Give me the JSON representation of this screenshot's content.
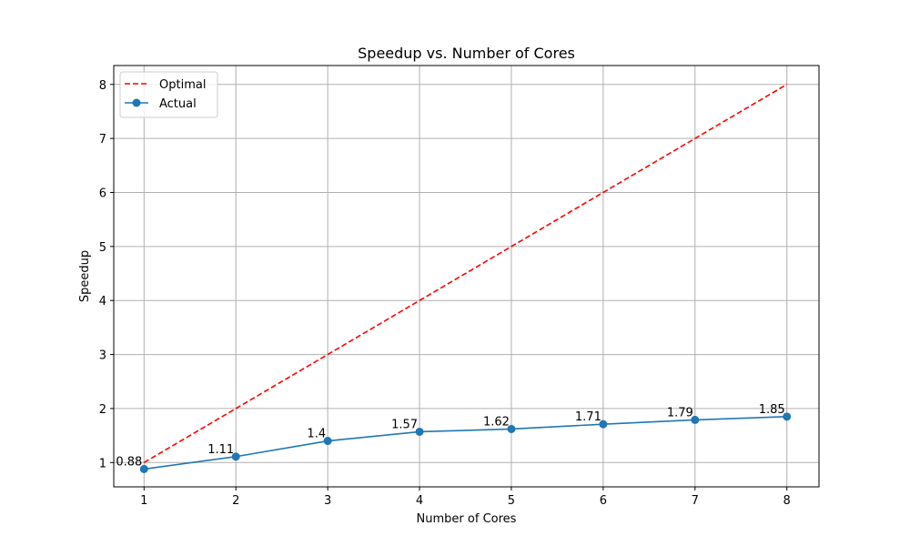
{
  "chart_data": {
    "type": "line",
    "title": "Speedup vs. Number of Cores",
    "xlabel": "Number of Cores",
    "ylabel": "Speedup",
    "x": [
      1,
      2,
      3,
      4,
      5,
      6,
      7,
      8
    ],
    "xlim": [
      0.67,
      8.35
    ],
    "ylim": [
      0.55,
      8.35
    ],
    "xticks": [
      "1",
      "2",
      "3",
      "4",
      "5",
      "6",
      "7",
      "8"
    ],
    "yticks": [
      "1",
      "2",
      "3",
      "4",
      "5",
      "6",
      "7",
      "8"
    ],
    "grid": true,
    "legend_position": "top-left",
    "series": [
      {
        "name": "Optimal",
        "values": [
          1,
          2,
          3,
          4,
          5,
          6,
          7,
          8
        ],
        "color": "#ff0000",
        "style": "dashed",
        "markers": false
      },
      {
        "name": "Actual",
        "values": [
          0.88,
          1.11,
          1.4,
          1.57,
          1.62,
          1.71,
          1.79,
          1.85
        ],
        "color": "#1f77b4",
        "style": "solid",
        "markers": true,
        "data_labels": [
          "0.88",
          "1.11",
          "1.4",
          "1.57",
          "1.62",
          "1.71",
          "1.79",
          "1.85"
        ]
      }
    ]
  }
}
